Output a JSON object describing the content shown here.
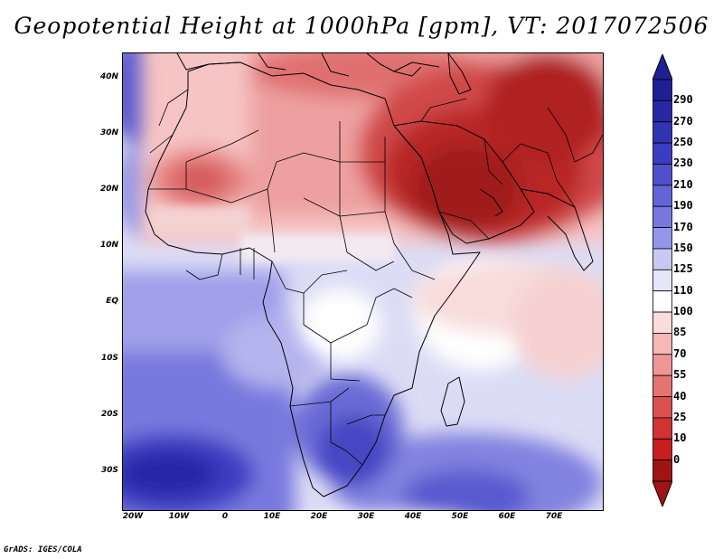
{
  "title": "Geopotential Height at 1000hPa [gpm], VT: 2017072506",
  "credit": "GrADS: IGES/COLA",
  "lat_labels": [
    "40N",
    "30N",
    "20N",
    "10N",
    "EQ",
    "10S",
    "20S",
    "30S"
  ],
  "lon_labels": [
    "20W",
    "10W",
    "0",
    "10E",
    "20E",
    "30E",
    "40E",
    "50E",
    "60E",
    "70E"
  ],
  "colorbar": {
    "levels": [
      "290",
      "270",
      "250",
      "230",
      "210",
      "190",
      "170",
      "150",
      "125",
      "110",
      "100",
      "85",
      "70",
      "55",
      "40",
      "25",
      "10",
      "0"
    ],
    "colors": [
      "#1e1e96",
      "#2828a6",
      "#3232b4",
      "#3c3cc2",
      "#5050cc",
      "#6464d6",
      "#7878e0",
      "#9696e8",
      "#c8c8f4",
      "#e6e6fa",
      "#ffffff",
      "#fadcdc",
      "#f4b8b8",
      "#ee9696",
      "#e67272",
      "#dc5050",
      "#d23232",
      "#c81e1e",
      "#a01414"
    ]
  }
}
